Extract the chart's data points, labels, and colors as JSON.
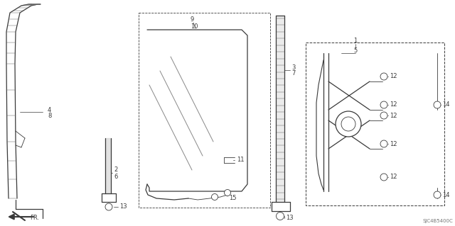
{
  "background_color": "#ffffff",
  "line_color": "#3a3a3a",
  "fig_width": 6.4,
  "fig_height": 3.19,
  "dpi": 100,
  "watermark": "SJC4B5400C"
}
